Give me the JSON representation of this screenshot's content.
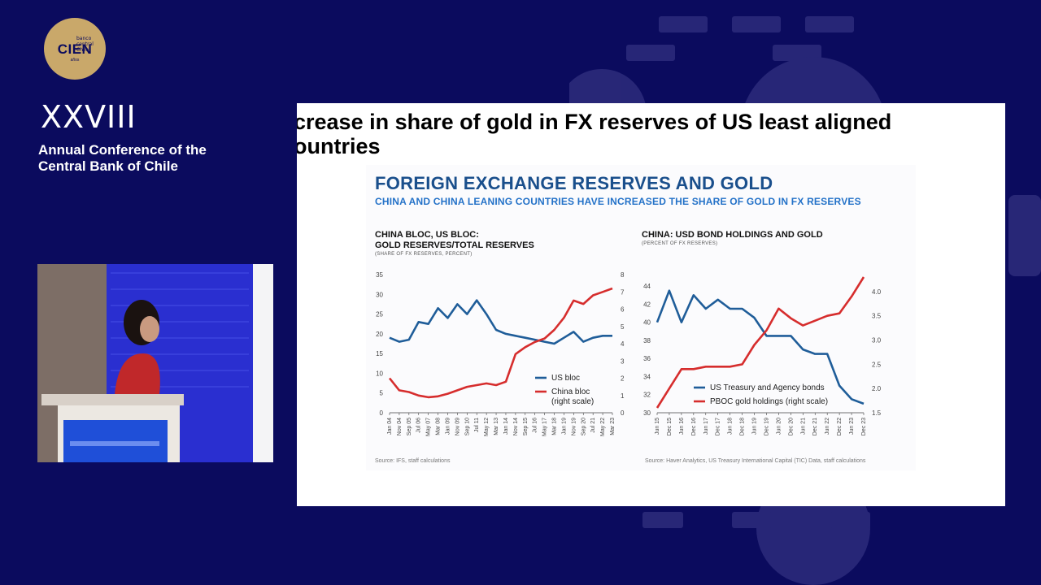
{
  "event": {
    "logo_text": "CIEN",
    "logo_sub": "banco central Chile",
    "logo_years": "años",
    "roman": "XXVIII",
    "conference_line1": "Annual Conference of the",
    "conference_line2": "Central Bank of Chile"
  },
  "slide": {
    "title_line1": "crease in share of gold in FX reserves of US least aligned",
    "title_line2": "ountries",
    "heading": "FOREIGN EXCHANGE RESERVES AND GOLD",
    "subheading": "CHINA AND CHINA LEANING COUNTRIES HAVE INCREASED THE SHARE OF GOLD IN FX RESERVES"
  },
  "colors": {
    "navy": "#0b0b5e",
    "blue_series": "#1f5d99",
    "red_series": "#d62d2d",
    "heading": "#1a4f8c",
    "subheading": "#2472c8"
  },
  "chart_data": [
    {
      "type": "line",
      "title_line1": "CHINA BLOC, US BLOC:",
      "title_line2": "GOLD RESERVES/TOTAL RESERVES",
      "unit": "(SHARE OF FX RESERVES, PERCENT)",
      "source": "Source: IFS, staff calculations",
      "x_ticks": [
        "Jan 04",
        "Nov 04",
        "Sep 05",
        "Jul 06",
        "May 07",
        "Mar 08",
        "Jan 09",
        "Nov 09",
        "Sep 10",
        "Jul 11",
        "May 12",
        "Mar 13",
        "Jan 14",
        "Nov 14",
        "Sep 15",
        "Jul 16",
        "May 17",
        "Mar 18",
        "Jan 19",
        "Nov 19",
        "Sep 20",
        "Jul 21",
        "May 22",
        "Mar 23"
      ],
      "y_left": {
        "ticks": [
          0,
          5,
          10,
          15,
          20,
          25,
          30,
          35
        ],
        "range": [
          0,
          35
        ]
      },
      "y_right": {
        "ticks": [
          0,
          1,
          2,
          3,
          4,
          5,
          6,
          7,
          8
        ],
        "range": [
          0,
          8
        ]
      },
      "series": [
        {
          "name": "US bloc",
          "axis": "left",
          "color": "#1f5d99",
          "values": [
            19,
            18,
            18.5,
            23,
            22.5,
            26.5,
            24,
            27.5,
            25,
            28.5,
            25,
            21,
            20,
            19.5,
            19,
            18.5,
            18,
            17.5,
            19,
            20.5,
            18,
            19,
            19.5,
            19.5
          ]
        },
        {
          "name": "China bloc",
          "axis": "right",
          "color": "#d62d2d",
          "values": [
            2,
            1.3,
            1.2,
            1.0,
            0.9,
            0.95,
            1.1,
            1.3,
            1.5,
            1.6,
            1.7,
            1.6,
            1.8,
            3.4,
            3.8,
            4.1,
            4.3,
            4.8,
            5.5,
            6.5,
            6.3,
            6.8,
            7.0,
            7.2
          ]
        }
      ],
      "legend": [
        {
          "label_line1": "US bloc",
          "label_line2": ""
        },
        {
          "label_line1": "China bloc",
          "label_line2": "(right scale)"
        }
      ]
    },
    {
      "type": "line",
      "title_line1": "CHINA: USD BOND HOLDINGS AND GOLD",
      "unit": "(PERCENT OF FX RESERVES)",
      "source": "Source: Haver Analytics, US Treasury International Capital (TIC) Data, staff calculations",
      "x_ticks": [
        "Jun 15",
        "Dec 15",
        "Jun 16",
        "Dec 16",
        "Jun 17",
        "Dec 17",
        "Jun 18",
        "Dec 18",
        "Jun 19",
        "Dec 19",
        "Jun 20",
        "Dec 20",
        "Jun 21",
        "Dec 21",
        "Jun 22",
        "Dec 22",
        "Jun 23",
        "Dec 23"
      ],
      "y_left": {
        "ticks": [
          30,
          32,
          34,
          36,
          38,
          40,
          42,
          44
        ],
        "range": [
          30,
          45
        ]
      },
      "y_right": {
        "ticks": [
          1.5,
          2.0,
          2.5,
          3.0,
          3.5,
          4.0
        ],
        "range": [
          1.5,
          4.3
        ]
      },
      "series": [
        {
          "name": "US Treasury and Agency bonds",
          "axis": "left",
          "color": "#1f5d99",
          "values": [
            40,
            43.5,
            40,
            43,
            41.5,
            42.5,
            41.5,
            41.5,
            40.5,
            38.5,
            38.5,
            38.5,
            37,
            36.5,
            36.5,
            33,
            31.5,
            31
          ]
        },
        {
          "name": "PBOC gold holdings (right scale)",
          "axis": "right",
          "color": "#d62d2d",
          "values": [
            1.6,
            2.0,
            2.4,
            2.4,
            2.45,
            2.45,
            2.45,
            2.5,
            2.9,
            3.2,
            3.65,
            3.45,
            3.3,
            3.4,
            3.5,
            3.55,
            3.9,
            4.3
          ]
        }
      ],
      "legend": [
        {
          "label_line1": "US Treasury and Agency bonds",
          "label_line2": ""
        },
        {
          "label_line1": "PBOC gold holdings (right scale)",
          "label_line2": ""
        }
      ]
    }
  ]
}
